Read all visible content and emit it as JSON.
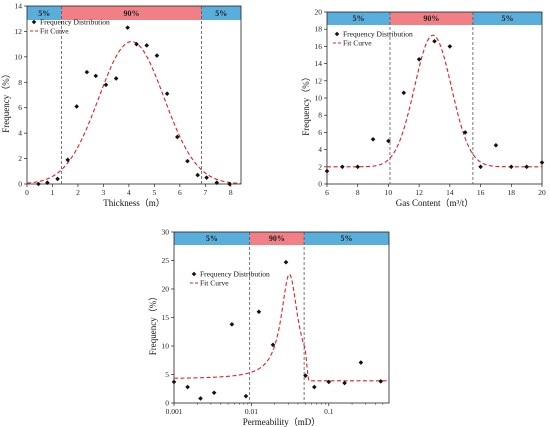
{
  "colors": {
    "band_blue": "#5aaedc",
    "band_red": "#f07f86",
    "fit_curve": "#e02020",
    "points": "#111111",
    "axis": "#222222",
    "boundary": "#555555"
  },
  "legend": {
    "points_label": "Frequency Distribution",
    "curve_label": "Fit Curve"
  },
  "chart_data": [
    {
      "id": "thickness",
      "type": "scatter",
      "xlabel": "Thickness（m）",
      "ylabel": "Frequency（%）",
      "xlim": [
        0,
        8.4
      ],
      "ylim": [
        0,
        14
      ],
      "xscale": "linear",
      "xticks": [
        {
          "v": 0,
          "label": "0"
        },
        {
          "v": 1,
          "label": "1"
        },
        {
          "v": 2,
          "label": "2"
        },
        {
          "v": 3,
          "label": "3"
        },
        {
          "v": 4,
          "label": "4"
        },
        {
          "v": 5,
          "label": "5"
        },
        {
          "v": 6,
          "label": "6"
        },
        {
          "v": 7,
          "label": "7"
        },
        {
          "v": 8,
          "label": "8"
        }
      ],
      "yticks": [
        {
          "v": 0,
          "label": "0"
        },
        {
          "v": 2,
          "label": "2"
        },
        {
          "v": 4,
          "label": "4"
        },
        {
          "v": 6,
          "label": "6"
        },
        {
          "v": 8,
          "label": "8"
        },
        {
          "v": 10,
          "label": "10"
        },
        {
          "v": 12,
          "label": "12"
        },
        {
          "v": 14,
          "label": "14"
        }
      ],
      "bands": [
        {
          "from": 0,
          "to": 1.35,
          "label": "5%",
          "color": "blue"
        },
        {
          "from": 1.35,
          "to": 6.85,
          "label": "90%",
          "color": "red"
        },
        {
          "from": 6.85,
          "to": 8.4,
          "label": "5%",
          "color": "blue"
        }
      ],
      "boundaries": [
        1.35,
        6.85
      ],
      "points": [
        [
          0.45,
          0
        ],
        [
          0.8,
          0.1
        ],
        [
          1.2,
          0.4
        ],
        [
          1.6,
          1.9
        ],
        [
          1.95,
          6.1
        ],
        [
          2.35,
          8.8
        ],
        [
          2.7,
          8.5
        ],
        [
          3.1,
          7.8
        ],
        [
          3.5,
          8.3
        ],
        [
          3.95,
          12.3
        ],
        [
          4.3,
          11
        ],
        [
          4.7,
          10.9
        ],
        [
          5.1,
          10.1
        ],
        [
          5.5,
          7.1
        ],
        [
          5.9,
          3.7
        ],
        [
          6.3,
          1.8
        ],
        [
          6.7,
          0.7
        ],
        [
          7.05,
          0.5
        ],
        [
          7.45,
          0.1
        ],
        [
          7.95,
          0
        ]
      ],
      "fit_curve": {
        "type": "gauss",
        "base": 0,
        "amp": 11.2,
        "center": 4.1,
        "sigma": 1.28
      }
    },
    {
      "id": "gas-content",
      "type": "scatter",
      "xlabel": "Gas Content（m³/t）",
      "ylabel": "Frequency（%）",
      "xlim": [
        6,
        20
      ],
      "ylim": [
        0,
        20
      ],
      "xscale": "linear",
      "xticks": [
        {
          "v": 6,
          "label": "6"
        },
        {
          "v": 8,
          "label": "8"
        },
        {
          "v": 10,
          "label": "10"
        },
        {
          "v": 12,
          "label": "12"
        },
        {
          "v": 14,
          "label": "14"
        },
        {
          "v": 16,
          "label": "16"
        },
        {
          "v": 18,
          "label": "18"
        },
        {
          "v": 20,
          "label": "20"
        }
      ],
      "yticks": [
        {
          "v": 0,
          "label": "0"
        },
        {
          "v": 2,
          "label": "2"
        },
        {
          "v": 4,
          "label": "4"
        },
        {
          "v": 6,
          "label": "6"
        },
        {
          "v": 8,
          "label": "8"
        },
        {
          "v": 10,
          "label": "10"
        },
        {
          "v": 12,
          "label": "12"
        },
        {
          "v": 14,
          "label": "14"
        },
        {
          "v": 16,
          "label": "16"
        },
        {
          "v": 18,
          "label": "18"
        },
        {
          "v": 20,
          "label": "20"
        }
      ],
      "bands": [
        {
          "from": 6,
          "to": 10.1,
          "label": "5%",
          "color": "blue"
        },
        {
          "from": 10.1,
          "to": 15.5,
          "label": "90%",
          "color": "red"
        },
        {
          "from": 15.5,
          "to": 20,
          "label": "5%",
          "color": "blue"
        }
      ],
      "boundaries": [
        10.1,
        15.5
      ],
      "points": [
        [
          6,
          1.5
        ],
        [
          7,
          2
        ],
        [
          8,
          2
        ],
        [
          9,
          5.2
        ],
        [
          10,
          5
        ],
        [
          11,
          10.6
        ],
        [
          12,
          14.5
        ],
        [
          13,
          16.6
        ],
        [
          14,
          16
        ],
        [
          15,
          6
        ],
        [
          16,
          2
        ],
        [
          17,
          4.5
        ],
        [
          18,
          2
        ],
        [
          19,
          2
        ],
        [
          20,
          2.5
        ]
      ],
      "fit_curve": {
        "type": "gauss",
        "base": 2,
        "amp": 15.3,
        "center": 12.9,
        "sigma": 1.2
      }
    },
    {
      "id": "permeability",
      "type": "scatter",
      "xlabel": "Permeability（mD）",
      "ylabel": "Frequency（%）",
      "xlim": [
        0.001,
        0.6
      ],
      "ylim": [
        0,
        30
      ],
      "xscale": "log",
      "xticks": [
        {
          "v": 0.001,
          "label": "0.001"
        },
        {
          "v": 0.01,
          "label": "0.01"
        },
        {
          "v": 0.1,
          "label": "0.1"
        }
      ],
      "yticks": [
        {
          "v": 0,
          "label": "0"
        },
        {
          "v": 5,
          "label": "5"
        },
        {
          "v": 10,
          "label": "10"
        },
        {
          "v": 15,
          "label": "15"
        },
        {
          "v": 20,
          "label": "20"
        },
        {
          "v": 25,
          "label": "25"
        },
        {
          "v": 30,
          "label": "30"
        }
      ],
      "bands": [
        {
          "from": 0.001,
          "to": 0.0095,
          "label": "5%",
          "color": "blue"
        },
        {
          "from": 0.0095,
          "to": 0.048,
          "label": "90%",
          "color": "red"
        },
        {
          "from": 0.048,
          "to": 0.6,
          "label": "5%",
          "color": "blue"
        }
      ],
      "boundaries": [
        0.0095,
        0.048
      ],
      "points": [
        [
          0.001,
          3.7
        ],
        [
          0.0015,
          2.8
        ],
        [
          0.0022,
          0.8
        ],
        [
          0.0033,
          1.8
        ],
        [
          0.0056,
          13.8
        ],
        [
          0.0085,
          1.2
        ],
        [
          0.0125,
          16
        ],
        [
          0.019,
          10.2
        ],
        [
          0.028,
          24.7
        ],
        [
          0.05,
          4.8
        ],
        [
          0.065,
          2.8
        ],
        [
          0.1,
          3.7
        ],
        [
          0.16,
          3.5
        ],
        [
          0.26,
          7.1
        ],
        [
          0.47,
          3.8
        ]
      ],
      "fit_curve": {
        "type": "lorentz-log",
        "base": 4.2,
        "amp": 18.4,
        "center": 0.031,
        "width": 0.13,
        "right_base": 3.9,
        "drop_at": 0.05
      }
    }
  ]
}
